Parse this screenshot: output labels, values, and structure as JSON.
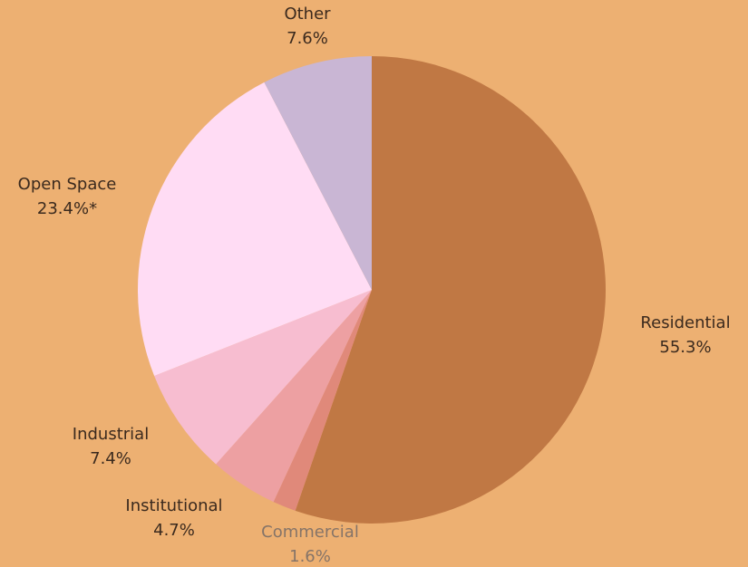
{
  "chart_data": {
    "type": "pie",
    "categories": [
      "Residential",
      "Commercial",
      "Institutional",
      "Industrial",
      "Open Space",
      "Other"
    ],
    "values": [
      55.3,
      1.6,
      4.7,
      7.4,
      23.4,
      7.6
    ],
    "value_labels": [
      "55.3%",
      "1.6%",
      "4.7%",
      "7.4%",
      "23.4%*",
      "7.6%"
    ],
    "colors": [
      "#c07844",
      "#e0897a",
      "#eda0a2",
      "#f7bdd0",
      "#ffdcf4",
      "#c9b6d4"
    ]
  }
}
